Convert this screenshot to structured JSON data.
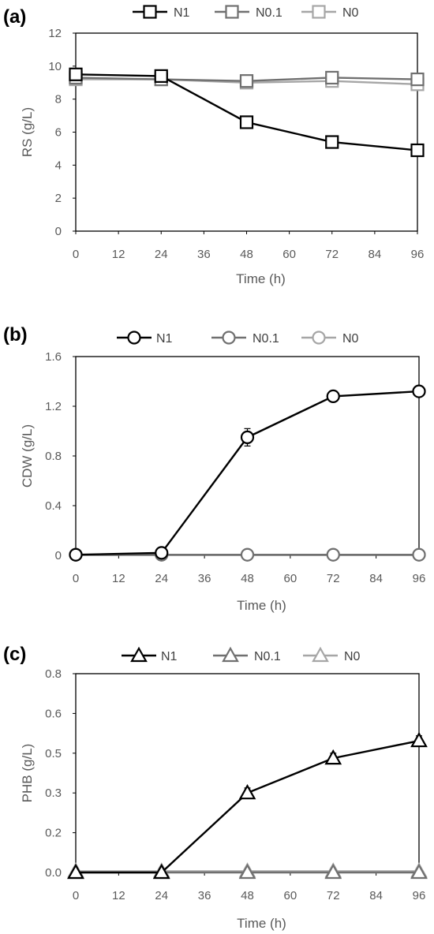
{
  "chart_data": [
    {
      "panel_label": "(a)",
      "type": "line",
      "marker": "square",
      "xlabel": "Time (h)",
      "ylabel": "RS (g/L)",
      "xlim": [
        0,
        96
      ],
      "ylim": [
        0,
        12
      ],
      "xticks": [
        "0",
        "12",
        "24",
        "36",
        "48",
        "60",
        "72",
        "84",
        "96"
      ],
      "yticks": [
        "0",
        "2",
        "4",
        "6",
        "8",
        "10",
        "12"
      ],
      "legend_position": "top",
      "grid": false,
      "x": [
        0,
        24,
        48,
        72,
        96
      ],
      "series": [
        {
          "name": "N1",
          "color": "#000000",
          "values": [
            9.5,
            9.4,
            6.6,
            5.4,
            4.9
          ],
          "error": [
            0.2,
            0.2,
            0.2,
            0.2,
            0.2
          ]
        },
        {
          "name": "N0.1",
          "color": "#707070",
          "values": [
            9.3,
            9.2,
            9.1,
            9.3,
            9.2
          ],
          "error": [
            0.3,
            0.2,
            0.3,
            0.3,
            0.2
          ]
        },
        {
          "name": "N0",
          "color": "#a6a6a6",
          "values": [
            9.2,
            9.2,
            9.0,
            9.1,
            8.9
          ],
          "error": [
            0.3,
            0.3,
            0.2,
            0.3,
            0.3
          ]
        }
      ]
    },
    {
      "panel_label": "(b)",
      "type": "line",
      "marker": "circle",
      "xlabel": "Time (h)",
      "ylabel": "CDW (g/L)",
      "xlim": [
        0,
        96
      ],
      "ylim": [
        0,
        1.6
      ],
      "xticks": [
        "0",
        "12",
        "24",
        "36",
        "48",
        "60",
        "72",
        "84",
        "96"
      ],
      "yticks": [
        "0",
        "0.4",
        "0.8",
        "1.2",
        "1.6"
      ],
      "legend_position": "top",
      "grid": false,
      "x": [
        0,
        24,
        48,
        72,
        96
      ],
      "series": [
        {
          "name": "N1",
          "color": "#000000",
          "values": [
            0.005,
            0.02,
            0.95,
            1.28,
            1.32
          ],
          "error": [
            0.01,
            0.01,
            0.07,
            0.02,
            0.02
          ]
        },
        {
          "name": "N0.1",
          "color": "#707070",
          "values": [
            0.005,
            0.005,
            0.005,
            0.005,
            0.005
          ],
          "error": [
            0,
            0,
            0,
            0,
            0
          ]
        },
        {
          "name": "N0",
          "color": "#a6a6a6",
          "values": [
            0.005,
            0.005,
            0.005,
            0.005,
            0.005
          ],
          "error": [
            0,
            0,
            0,
            0,
            0
          ]
        }
      ]
    },
    {
      "panel_label": "(c)",
      "type": "line",
      "marker": "triangle",
      "xlabel": "Time (h)",
      "ylabel": "PHB (g/L)",
      "xlim": [
        0,
        96
      ],
      "ylim": [
        0,
        0.8
      ],
      "xticks": [
        "0",
        "12",
        "24",
        "36",
        "48",
        "60",
        "72",
        "84",
        "96"
      ],
      "yticks": [
        "0.0",
        "0.2",
        "0.3",
        "0.5",
        "0.6",
        "0.8"
      ],
      "legend_position": "top",
      "grid": false,
      "x": [
        0,
        24,
        48,
        72,
        96
      ],
      "series": [
        {
          "name": "N1",
          "color": "#000000",
          "values": [
            0.0,
            0.0,
            0.32,
            0.46,
            0.53
          ],
          "error": [
            0.01,
            0.01,
            0.02,
            0.02,
            0.02
          ]
        },
        {
          "name": "N0.1",
          "color": "#707070",
          "values": [
            0.0,
            0.0,
            0.0,
            0.0,
            0.0
          ],
          "error": [
            0,
            0,
            0,
            0,
            0
          ]
        },
        {
          "name": "N0",
          "color": "#a6a6a6",
          "values": [
            0.005,
            0.005,
            0.005,
            0.005,
            0.005
          ],
          "error": [
            0,
            0,
            0,
            0,
            0
          ]
        }
      ]
    }
  ]
}
